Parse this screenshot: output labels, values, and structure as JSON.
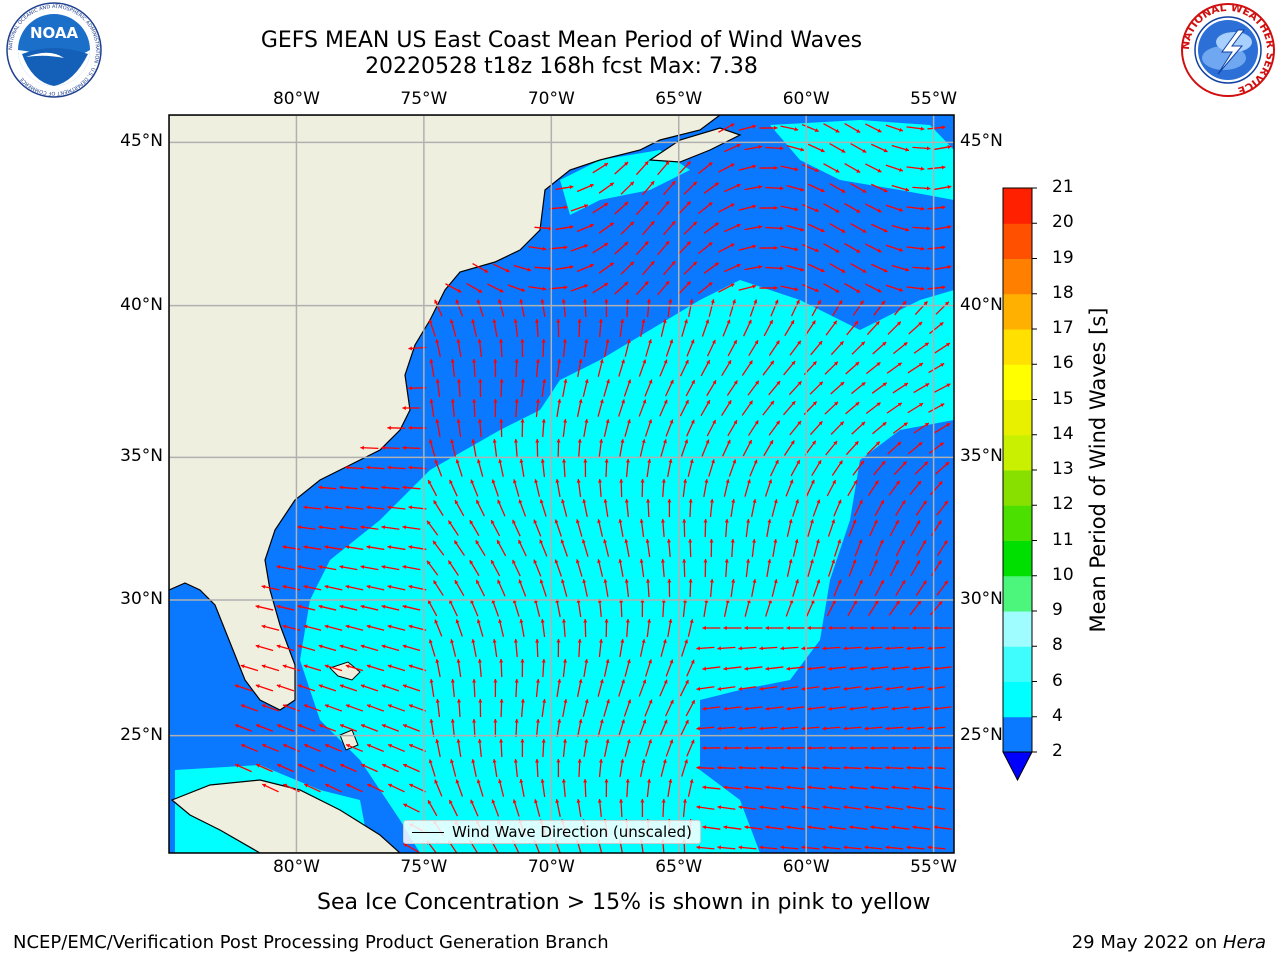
{
  "title": {
    "line1": "GEFS MEAN US East Coast Mean Period of Wind Waves",
    "line2": "20220528 t18z 168h fcst   Max: 7.38"
  },
  "logos": {
    "noaa_text": "NOAA",
    "noaa_ring": "NATIONAL OCEANIC AND ATMOSPHERIC ADMINISTRATION · U.S. DEPARTMENT OF COMMERCE",
    "nws_ring": "NATIONAL WEATHER SERVICE"
  },
  "map": {
    "lon_labels": [
      "80°W",
      "75°W",
      "70°W",
      "65°W",
      "60°W",
      "55°W"
    ],
    "lat_labels": [
      "45°N",
      "40°N",
      "35°N",
      "30°N",
      "25°N"
    ],
    "lon_values": [
      -80,
      -75,
      -70,
      -65,
      -60,
      -55
    ],
    "lat_values": [
      45,
      40,
      35,
      30,
      25
    ],
    "extent": {
      "lon": [
        -85,
        -54.2
      ],
      "lat": [
        20.5,
        45.8
      ]
    },
    "colors": {
      "land": "#efefdf",
      "ocean_low": "#0a78ff",
      "ocean_mid": "#00ffff",
      "arrow": "#ff0000",
      "grid": "#b0b0b0"
    },
    "legend_label": "Wind Wave Direction (unscaled)"
  },
  "colorbar": {
    "label": "Mean Period of Wind Waves [s]",
    "tick_labels": [
      "2",
      "4",
      "6",
      "8",
      "9",
      "10",
      "11",
      "12",
      "13",
      "14",
      "15",
      "16",
      "17",
      "18",
      "19",
      "20",
      "21"
    ],
    "levels": [
      2,
      4,
      6,
      8,
      9,
      10,
      11,
      12,
      13,
      14,
      15,
      16,
      17,
      18,
      19,
      20,
      21
    ],
    "colors": [
      "#0a78ff",
      "#00ffff",
      "#3ffdfd",
      "#9ffdff",
      "#4cf57c",
      "#00e000",
      "#4ce000",
      "#88e000",
      "#c8f000",
      "#e8f000",
      "#ffff00",
      "#ffe000",
      "#ffb000",
      "#ff8000",
      "#ff5000",
      "#ff2000"
    ],
    "under_color": "#0000ff"
  },
  "subtitle": "Sea Ice Concentration > 15% is shown in pink to yellow",
  "footer": {
    "left": "NCEP/EMC/Verification Post Processing Product Generation Branch",
    "right_date": "29 May 2022 on ",
    "right_machine": "Hera"
  }
}
